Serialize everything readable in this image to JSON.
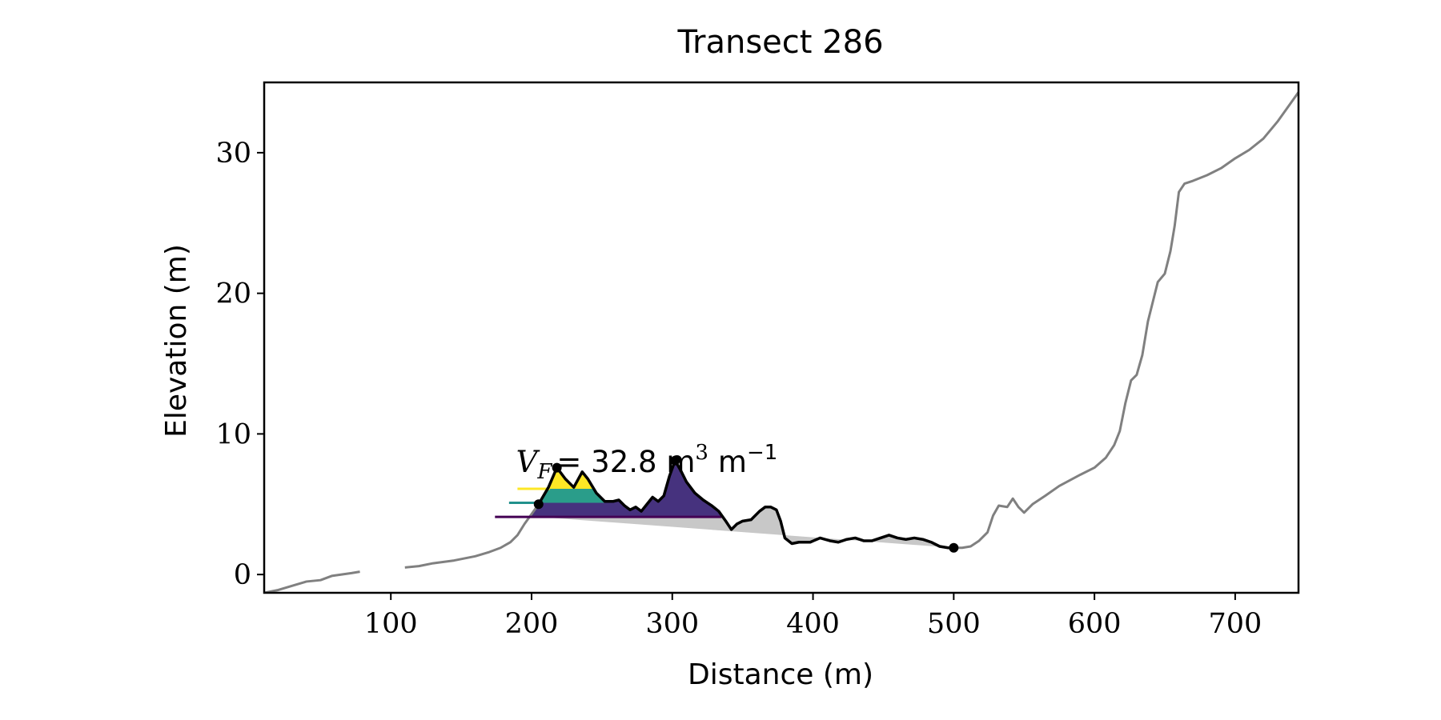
{
  "chart_data": {
    "type": "line",
    "title": "Transect 286",
    "xlabel": "Distance (m)",
    "ylabel": "Elevation (m)",
    "xlim": [
      10,
      745
    ],
    "ylim": [
      -1.3,
      35
    ],
    "xticks": [
      100,
      200,
      300,
      400,
      500,
      600,
      700
    ],
    "yticks": [
      0,
      10,
      20,
      30
    ],
    "grid": false,
    "annotation": {
      "prefix": "V",
      "subscript": "F",
      "text": "= 32.8 m",
      "sup1": "3",
      "unit2": "m",
      "sup2": "−1",
      "x": 189,
      "y": 7.3
    },
    "colors": {
      "profile": "#808080",
      "dune": "#000000",
      "fill_gray": "#c8c8c8",
      "level_low": "#440154",
      "level_mid": "#21918c",
      "level_high": "#fde725",
      "fill_low": "#46327e",
      "fill_mid": "#2a9d8a",
      "fill_high": "#fde725"
    },
    "series": [
      {
        "role": "full-profile",
        "segments": [
          [
            [
              10,
              -1.3
            ],
            [
              20,
              -1.1
            ],
            [
              30,
              -0.8
            ],
            [
              40,
              -0.5
            ],
            [
              50,
              -0.4
            ],
            [
              58,
              -0.1
            ],
            [
              65,
              0.0
            ],
            [
              72,
              0.1
            ],
            [
              78,
              0.2
            ]
          ],
          [
            [
              110,
              0.5
            ],
            [
              120,
              0.6
            ],
            [
              130,
              0.8
            ],
            [
              145,
              1.0
            ],
            [
              160,
              1.3
            ],
            [
              170,
              1.6
            ],
            [
              178,
              1.9
            ],
            [
              185,
              2.3
            ],
            [
              190,
              2.8
            ],
            [
              195,
              3.6
            ],
            [
              200,
              4.3
            ],
            [
              205,
              5.0
            ],
            [
              212,
              6.2
            ],
            [
              218,
              7.6
            ],
            [
              224,
              6.8
            ],
            [
              230,
              6.2
            ],
            [
              236,
              7.3
            ],
            [
              240,
              6.8
            ],
            [
              246,
              5.8
            ],
            [
              252,
              5.2
            ],
            [
              258,
              5.2
            ],
            [
              262,
              5.3
            ],
            [
              266,
              4.9
            ],
            [
              270,
              4.6
            ],
            [
              274,
              4.8
            ],
            [
              278,
              4.5
            ],
            [
              282,
              5.0
            ],
            [
              286,
              5.5
            ],
            [
              290,
              5.2
            ],
            [
              294,
              5.6
            ],
            [
              298,
              7.0
            ],
            [
              302,
              8.1
            ],
            [
              306,
              7.4
            ],
            [
              310,
              6.6
            ],
            [
              316,
              5.8
            ],
            [
              322,
              5.3
            ],
            [
              328,
              4.9
            ],
            [
              333,
              4.5
            ],
            [
              338,
              3.8
            ],
            [
              342,
              3.2
            ],
            [
              346,
              3.6
            ],
            [
              350,
              3.8
            ],
            [
              356,
              3.9
            ],
            [
              362,
              4.5
            ],
            [
              366,
              4.8
            ],
            [
              370,
              4.8
            ],
            [
              374,
              4.6
            ],
            [
              377,
              3.8
            ],
            [
              380,
              2.6
            ],
            [
              385,
              2.2
            ],
            [
              390,
              2.3
            ],
            [
              398,
              2.3
            ],
            [
              405,
              2.6
            ],
            [
              412,
              2.4
            ],
            [
              418,
              2.3
            ],
            [
              424,
              2.5
            ],
            [
              430,
              2.6
            ],
            [
              436,
              2.4
            ],
            [
              442,
              2.4
            ],
            [
              448,
              2.6
            ],
            [
              454,
              2.8
            ],
            [
              460,
              2.6
            ],
            [
              466,
              2.5
            ],
            [
              472,
              2.6
            ],
            [
              478,
              2.5
            ],
            [
              484,
              2.3
            ],
            [
              490,
              2.0
            ],
            [
              496,
              1.9
            ],
            [
              500,
              1.9
            ],
            [
              506,
              1.9
            ],
            [
              512,
              2.0
            ],
            [
              518,
              2.4
            ],
            [
              524,
              3.0
            ],
            [
              528,
              4.2
            ],
            [
              532,
              4.9
            ],
            [
              538,
              4.8
            ],
            [
              542,
              5.4
            ],
            [
              546,
              4.8
            ],
            [
              550,
              4.4
            ],
            [
              556,
              5.0
            ],
            [
              565,
              5.6
            ],
            [
              575,
              6.3
            ],
            [
              590,
              7.1
            ],
            [
              600,
              7.6
            ],
            [
              608,
              8.3
            ],
            [
              614,
              9.2
            ],
            [
              618,
              10.2
            ],
            [
              622,
              12.2
            ],
            [
              626,
              13.8
            ],
            [
              630,
              14.2
            ],
            [
              634,
              15.6
            ],
            [
              638,
              18.0
            ],
            [
              642,
              19.6
            ],
            [
              645,
              20.8
            ],
            [
              650,
              21.4
            ],
            [
              654,
              23.0
            ],
            [
              657,
              24.8
            ],
            [
              660,
              27.2
            ],
            [
              664,
              27.8
            ],
            [
              670,
              28.0
            ],
            [
              680,
              28.4
            ],
            [
              690,
              28.9
            ],
            [
              700,
              29.6
            ],
            [
              710,
              30.2
            ],
            [
              720,
              31.0
            ],
            [
              730,
              32.2
            ],
            [
              745,
              34.3
            ]
          ]
        ]
      },
      {
        "role": "dune-profile",
        "segments": [
          [
            [
              205,
              5.0
            ],
            [
              212,
              6.2
            ],
            [
              218,
              7.6
            ],
            [
              224,
              6.8
            ],
            [
              230,
              6.2
            ],
            [
              236,
              7.3
            ],
            [
              240,
              6.8
            ],
            [
              246,
              5.8
            ],
            [
              252,
              5.2
            ],
            [
              258,
              5.2
            ],
            [
              262,
              5.3
            ],
            [
              266,
              4.9
            ],
            [
              270,
              4.6
            ],
            [
              274,
              4.8
            ],
            [
              278,
              4.5
            ],
            [
              282,
              5.0
            ],
            [
              286,
              5.5
            ],
            [
              290,
              5.2
            ],
            [
              294,
              5.6
            ],
            [
              298,
              7.0
            ],
            [
              302,
              8.1
            ],
            [
              306,
              7.4
            ],
            [
              310,
              6.6
            ],
            [
              316,
              5.8
            ],
            [
              322,
              5.3
            ],
            [
              328,
              4.9
            ],
            [
              333,
              4.5
            ],
            [
              338,
              3.8
            ],
            [
              342,
              3.2
            ],
            [
              346,
              3.6
            ],
            [
              350,
              3.8
            ],
            [
              356,
              3.9
            ],
            [
              362,
              4.5
            ],
            [
              366,
              4.8
            ],
            [
              370,
              4.8
            ],
            [
              374,
              4.6
            ],
            [
              377,
              3.8
            ],
            [
              380,
              2.6
            ],
            [
              385,
              2.2
            ],
            [
              390,
              2.3
            ],
            [
              398,
              2.3
            ],
            [
              405,
              2.6
            ],
            [
              412,
              2.4
            ],
            [
              418,
              2.3
            ],
            [
              424,
              2.5
            ],
            [
              430,
              2.6
            ],
            [
              436,
              2.4
            ],
            [
              442,
              2.4
            ],
            [
              448,
              2.6
            ],
            [
              454,
              2.8
            ],
            [
              460,
              2.6
            ],
            [
              466,
              2.5
            ],
            [
              472,
              2.6
            ],
            [
              478,
              2.5
            ],
            [
              484,
              2.3
            ],
            [
              490,
              2.0
            ],
            [
              496,
              1.9
            ],
            [
              500,
              1.9
            ]
          ]
        ]
      }
    ],
    "fills": [
      {
        "role": "gray-area",
        "baseline": [
          [
            205,
            4.1
          ],
          [
            500,
            1.9
          ]
        ]
      },
      {
        "role": "level-low",
        "level": 4.1,
        "x_range": [
          200,
          335
        ]
      },
      {
        "role": "level-mid",
        "level": 5.1,
        "x_range": [
          205,
          258
        ]
      },
      {
        "role": "level-high",
        "level": 6.1,
        "x_range": [
          212,
          244
        ]
      }
    ],
    "level_lines": [
      {
        "role": "level-low",
        "y": 4.1,
        "x": [
          174,
          335
        ]
      },
      {
        "role": "level-mid",
        "y": 5.1,
        "x": [
          184,
          207
        ]
      },
      {
        "role": "level-high",
        "y": 6.1,
        "x": [
          190,
          213
        ]
      }
    ],
    "points": [
      [
        205,
        5.0
      ],
      [
        218,
        7.6
      ],
      [
        302,
        8.1
      ],
      [
        500,
        1.9
      ]
    ]
  }
}
